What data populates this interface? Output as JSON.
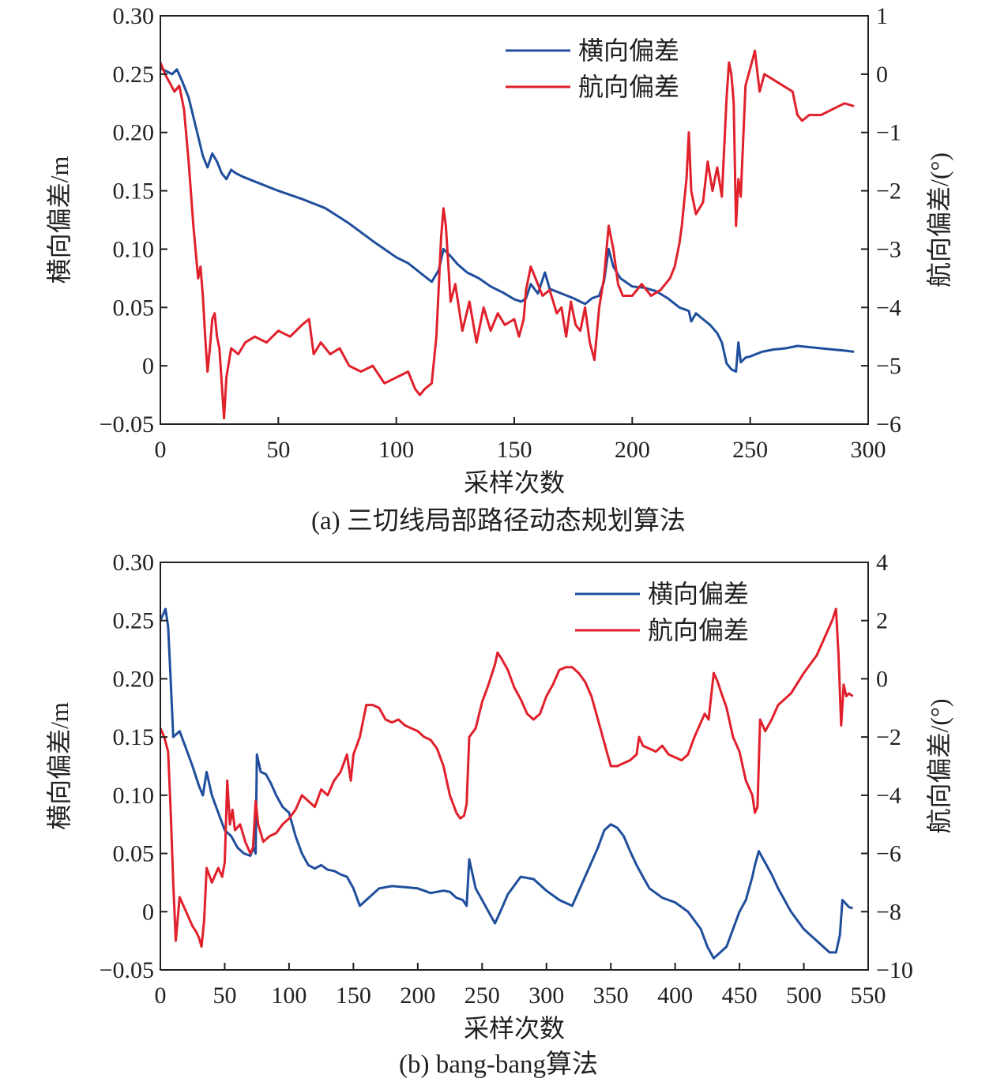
{
  "chart_data": [
    {
      "type": "line",
      "caption": "(a) 三切线局部路径动态规划算法",
      "xlabel": "采样次数",
      "ylabel_left": "横向偏差/m",
      "ylabel_right": "航向偏差/(°)",
      "xlim": [
        0,
        300
      ],
      "ylim_left": [
        -0.05,
        0.3
      ],
      "ylim_right": [
        -6,
        1
      ],
      "x_ticks": [
        0,
        50,
        100,
        150,
        200,
        250,
        300
      ],
      "y_ticks_left": [
        -0.05,
        0,
        0.05,
        0.1,
        0.15,
        0.2,
        0.25,
        0.3
      ],
      "y_tick_labels_left": [
        "−0.05",
        "0",
        "0.05",
        "0.10",
        "0.15",
        "0.20",
        "0.25",
        "0.30"
      ],
      "y_ticks_right": [
        -6,
        -5,
        -4,
        -3,
        -2,
        -1,
        0,
        1
      ],
      "y_tick_labels_right": [
        "−6",
        "−5",
        "−4",
        "−3",
        "−2",
        "−1",
        "0",
        "1"
      ],
      "legend_position": "top-right",
      "series": [
        {
          "name": "横向偏差",
          "axis": "left",
          "color": "#1f4e9c",
          "x": [
            0,
            3,
            5,
            7,
            9,
            12,
            15,
            18,
            20,
            22,
            24,
            26,
            28,
            30,
            32,
            35,
            40,
            50,
            60,
            70,
            80,
            90,
            100,
            105,
            110,
            115,
            118,
            120,
            123,
            126,
            130,
            135,
            140,
            145,
            150,
            153,
            155,
            157,
            160,
            163,
            165,
            170,
            175,
            180,
            183,
            186,
            188,
            190,
            192,
            195,
            200,
            205,
            210,
            215,
            220,
            224,
            225,
            227,
            230,
            233,
            236,
            238,
            240,
            242,
            244,
            245,
            246,
            248,
            250,
            255,
            260,
            265,
            270,
            275,
            280,
            285,
            290,
            294
          ],
          "y": [
            0.255,
            0.252,
            0.25,
            0.254,
            0.245,
            0.23,
            0.205,
            0.18,
            0.17,
            0.182,
            0.175,
            0.165,
            0.16,
            0.168,
            0.165,
            0.162,
            0.158,
            0.15,
            0.143,
            0.135,
            0.122,
            0.107,
            0.093,
            0.088,
            0.08,
            0.072,
            0.082,
            0.1,
            0.094,
            0.087,
            0.08,
            0.075,
            0.068,
            0.063,
            0.057,
            0.055,
            0.058,
            0.07,
            0.062,
            0.08,
            0.066,
            0.062,
            0.058,
            0.053,
            0.058,
            0.06,
            0.072,
            0.1,
            0.085,
            0.075,
            0.068,
            0.067,
            0.064,
            0.058,
            0.05,
            0.047,
            0.038,
            0.045,
            0.04,
            0.035,
            0.028,
            0.02,
            0.002,
            -0.003,
            -0.005,
            0.02,
            0.003,
            0.007,
            0.008,
            0.012,
            0.014,
            0.015,
            0.017,
            0.016,
            0.015,
            0.014,
            0.013,
            0.012
          ]
        },
        {
          "name": "航向偏差",
          "axis": "right",
          "color": "#e0202b",
          "x": [
            0,
            2,
            4,
            6,
            8,
            10,
            12,
            14,
            16,
            17,
            18,
            19,
            20,
            21,
            22,
            23,
            24,
            25,
            26,
            27,
            28,
            30,
            33,
            36,
            40,
            45,
            50,
            55,
            60,
            63,
            65,
            68,
            72,
            76,
            80,
            85,
            90,
            95,
            100,
            105,
            108,
            110,
            112,
            115,
            117,
            119,
            120,
            121,
            123,
            125,
            128,
            131,
            134,
            137,
            140,
            143,
            146,
            150,
            152,
            154,
            155,
            157,
            159,
            162,
            165,
            168,
            170,
            172,
            174,
            176,
            178,
            180,
            182,
            184,
            186,
            188,
            190,
            192,
            194,
            196,
            200,
            204,
            208,
            212,
            216,
            218,
            220,
            221,
            222,
            223,
            224,
            225,
            227,
            230,
            232,
            234,
            236,
            238,
            240,
            241,
            242,
            243,
            244,
            245,
            246,
            248,
            250,
            252,
            254,
            256,
            260,
            264,
            268,
            270,
            272,
            275,
            280,
            285,
            290,
            294
          ],
          "y": [
            0.2,
            0.0,
            -0.15,
            -0.3,
            -0.2,
            -0.6,
            -1.5,
            -2.6,
            -3.5,
            -3.3,
            -3.8,
            -4.5,
            -5.1,
            -4.7,
            -4.2,
            -4.1,
            -4.5,
            -4.7,
            -5.3,
            -5.9,
            -5.2,
            -4.7,
            -4.8,
            -4.6,
            -4.5,
            -4.6,
            -4.4,
            -4.5,
            -4.3,
            -4.2,
            -4.8,
            -4.6,
            -4.8,
            -4.7,
            -5.0,
            -5.1,
            -5.0,
            -5.3,
            -5.2,
            -5.1,
            -5.4,
            -5.5,
            -5.4,
            -5.3,
            -4.5,
            -2.8,
            -2.3,
            -2.6,
            -3.9,
            -3.6,
            -4.4,
            -3.9,
            -4.6,
            -4.0,
            -4.4,
            -4.1,
            -4.3,
            -4.2,
            -4.5,
            -4.2,
            -3.7,
            -3.3,
            -3.5,
            -3.8,
            -3.7,
            -4.1,
            -4.0,
            -4.5,
            -3.9,
            -4.3,
            -4.4,
            -4.0,
            -4.6,
            -4.9,
            -4.0,
            -3.5,
            -2.6,
            -3.0,
            -3.6,
            -3.8,
            -3.8,
            -3.6,
            -3.8,
            -3.7,
            -3.5,
            -3.3,
            -2.9,
            -2.6,
            -2.2,
            -1.8,
            -1.0,
            -2.0,
            -2.4,
            -2.2,
            -1.5,
            -2.0,
            -1.6,
            -2.1,
            -0.4,
            0.2,
            0.0,
            -0.5,
            -2.6,
            -1.8,
            -2.1,
            -0.2,
            0.1,
            0.4,
            -0.3,
            0.0,
            -0.1,
            -0.2,
            -0.3,
            -0.7,
            -0.8,
            -0.7,
            -0.7,
            -0.6,
            -0.5,
            -0.55
          ]
        }
      ]
    },
    {
      "type": "line",
      "caption": "(b) bang-bang算法",
      "xlabel": "采样次数",
      "ylabel_left": "横向偏差/m",
      "ylabel_right": "航向偏差/(°)",
      "xlim": [
        0,
        550
      ],
      "ylim_left": [
        -0.05,
        0.3
      ],
      "ylim_right": [
        -10,
        4
      ],
      "x_ticks": [
        0,
        50,
        100,
        150,
        200,
        250,
        300,
        350,
        400,
        450,
        500,
        550
      ],
      "y_ticks_left": [
        -0.05,
        0,
        0.05,
        0.1,
        0.15,
        0.2,
        0.25,
        0.3
      ],
      "y_tick_labels_left": [
        "−0.05",
        "0",
        "0.05",
        "0.10",
        "0.15",
        "0.20",
        "0.25",
        "0.30"
      ],
      "y_ticks_right": [
        -10,
        -8,
        -6,
        -4,
        -2,
        0,
        2,
        4
      ],
      "y_tick_labels_right": [
        "−10",
        "−8",
        "−6",
        "−4",
        "−2",
        "0",
        "2",
        "4"
      ],
      "legend_position": "top-right",
      "series": [
        {
          "name": "横向偏差",
          "axis": "left",
          "color": "#1f4e9c",
          "x": [
            0,
            2,
            4,
            6,
            8,
            10,
            15,
            20,
            25,
            30,
            33,
            36,
            40,
            45,
            50,
            55,
            60,
            65,
            70,
            72,
            74,
            75,
            78,
            82,
            86,
            90,
            95,
            100,
            105,
            110,
            115,
            120,
            125,
            130,
            135,
            140,
            145,
            150,
            155,
            160,
            170,
            180,
            190,
            200,
            210,
            220,
            225,
            230,
            235,
            238,
            240,
            245,
            250,
            255,
            260,
            265,
            270,
            280,
            290,
            300,
            310,
            320,
            330,
            340,
            345,
            350,
            355,
            360,
            365,
            370,
            375,
            380,
            390,
            400,
            410,
            420,
            425,
            430,
            435,
            440,
            445,
            450,
            455,
            460,
            462,
            465,
            470,
            475,
            480,
            490,
            500,
            510,
            520,
            525,
            528,
            530,
            535,
            538
          ],
          "y": [
            0.25,
            0.255,
            0.26,
            0.245,
            0.2,
            0.15,
            0.155,
            0.14,
            0.125,
            0.108,
            0.1,
            0.12,
            0.1,
            0.085,
            0.07,
            0.065,
            0.055,
            0.05,
            0.048,
            0.055,
            0.05,
            0.135,
            0.12,
            0.118,
            0.11,
            0.1,
            0.09,
            0.085,
            0.065,
            0.05,
            0.04,
            0.037,
            0.04,
            0.036,
            0.035,
            0.032,
            0.03,
            0.02,
            0.005,
            0.01,
            0.02,
            0.022,
            0.021,
            0.02,
            0.016,
            0.018,
            0.017,
            0.012,
            0.01,
            0.005,
            0.045,
            0.02,
            0.01,
            0.0,
            -0.01,
            0.002,
            0.015,
            0.03,
            0.028,
            0.018,
            0.01,
            0.005,
            0.03,
            0.055,
            0.07,
            0.075,
            0.072,
            0.065,
            0.052,
            0.04,
            0.03,
            0.02,
            0.012,
            0.008,
            0.0,
            -0.015,
            -0.03,
            -0.04,
            -0.035,
            -0.03,
            -0.015,
            0.0,
            0.01,
            0.03,
            0.04,
            0.052,
            0.042,
            0.032,
            0.02,
            0.0,
            -0.015,
            -0.025,
            -0.035,
            -0.035,
            -0.02,
            0.01,
            0.004,
            0.003
          ]
        },
        {
          "name": "航向偏差",
          "axis": "right",
          "color": "#e0202b",
          "x": [
            0,
            3,
            6,
            8,
            10,
            12,
            15,
            20,
            25,
            28,
            30,
            32,
            34,
            36,
            40,
            45,
            48,
            50,
            52,
            54,
            56,
            58,
            62,
            66,
            70,
            72,
            74,
            76,
            80,
            85,
            90,
            95,
            100,
            105,
            110,
            115,
            120,
            125,
            130,
            135,
            140,
            145,
            148,
            150,
            155,
            160,
            165,
            170,
            175,
            180,
            185,
            190,
            195,
            200,
            205,
            210,
            215,
            220,
            225,
            230,
            233,
            236,
            238,
            240,
            245,
            250,
            255,
            260,
            262,
            265,
            270,
            275,
            280,
            285,
            290,
            295,
            300,
            305,
            310,
            315,
            320,
            325,
            330,
            335,
            340,
            345,
            350,
            355,
            360,
            365,
            370,
            372,
            375,
            380,
            385,
            390,
            395,
            400,
            405,
            410,
            415,
            420,
            423,
            426,
            430,
            433,
            436,
            440,
            445,
            450,
            455,
            460,
            462,
            464,
            466,
            470,
            475,
            480,
            490,
            500,
            510,
            515,
            520,
            522,
            525,
            527,
            529,
            531,
            533,
            535,
            538
          ],
          "y": [
            -1.7,
            -2.0,
            -2.5,
            -4.5,
            -7.0,
            -9.0,
            -7.5,
            -8.0,
            -8.5,
            -8.7,
            -8.9,
            -9.2,
            -8.3,
            -6.5,
            -7.0,
            -6.5,
            -6.8,
            -6.3,
            -3.5,
            -5.0,
            -4.5,
            -5.2,
            -5.0,
            -5.6,
            -6.0,
            -5.8,
            -4.2,
            -5.0,
            -5.6,
            -5.4,
            -5.3,
            -5.0,
            -4.8,
            -4.5,
            -4.0,
            -4.2,
            -4.4,
            -3.8,
            -4.0,
            -3.5,
            -3.2,
            -2.6,
            -3.5,
            -2.6,
            -2.0,
            -0.9,
            -0.9,
            -1.0,
            -1.4,
            -1.5,
            -1.4,
            -1.6,
            -1.7,
            -1.8,
            -2.0,
            -2.1,
            -2.4,
            -3.0,
            -4.0,
            -4.6,
            -4.8,
            -4.7,
            -4.3,
            -2.0,
            -1.7,
            -0.8,
            -0.2,
            0.5,
            0.9,
            0.7,
            0.3,
            -0.3,
            -0.7,
            -1.2,
            -1.4,
            -1.2,
            -0.6,
            -0.2,
            0.3,
            0.4,
            0.4,
            0.2,
            -0.1,
            -0.6,
            -1.4,
            -2.2,
            -3.0,
            -3.0,
            -2.9,
            -2.8,
            -2.6,
            -2.0,
            -2.3,
            -2.4,
            -2.5,
            -2.3,
            -2.6,
            -2.7,
            -2.8,
            -2.6,
            -2.0,
            -1.5,
            -1.2,
            -1.4,
            0.2,
            -0.1,
            -0.5,
            -1.0,
            -2.0,
            -2.5,
            -3.5,
            -4.0,
            -4.6,
            -4.4,
            -1.4,
            -1.8,
            -1.4,
            -0.9,
            -0.5,
            0.2,
            0.8,
            1.3,
            1.8,
            2.0,
            2.4,
            0.8,
            -1.6,
            -0.2,
            -0.6,
            -0.5,
            -0.6
          ]
        }
      ]
    }
  ]
}
